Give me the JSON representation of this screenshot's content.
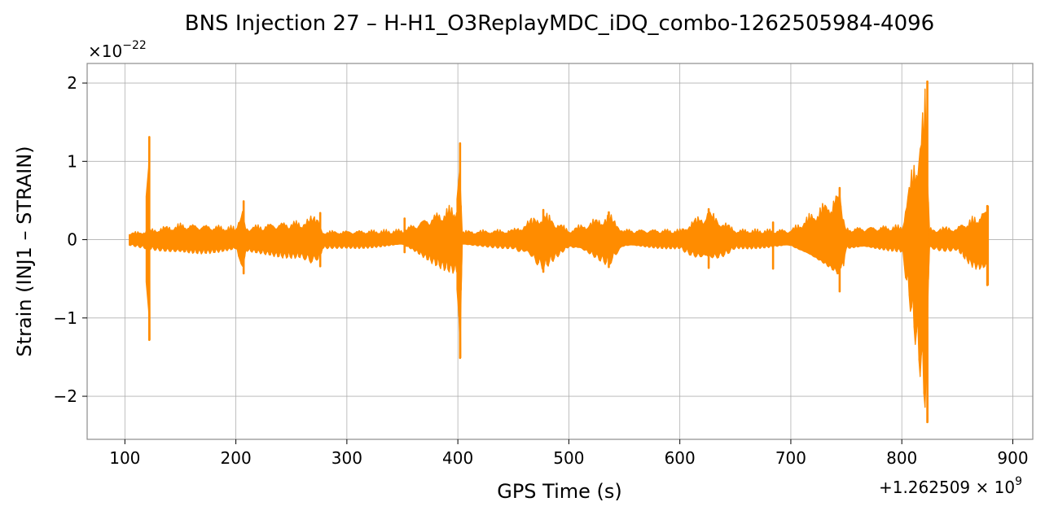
{
  "chart_data": {
    "type": "line",
    "title": "BNS Injection 27 – H-H1_O3ReplayMDC_iDQ_combo-1262505984-4096",
    "xlabel": "GPS Time (s)",
    "ylabel": "Strain (INJ1 – STRAIN)",
    "x_offset_label": "+1.262509 × 10",
    "x_offset_exp": "9",
    "y_scale_label": "×10",
    "y_scale_exp": "−22",
    "xlim": [
      66,
      918
    ],
    "ylim": [
      -2.55,
      2.25
    ],
    "xticks": [
      100,
      200,
      300,
      400,
      500,
      600,
      700,
      800,
      900
    ],
    "xtick_labels": [
      "100",
      "200",
      "300",
      "400",
      "500",
      "600",
      "700",
      "800",
      "900"
    ],
    "yticks": [
      2,
      1,
      0,
      -1,
      -2
    ],
    "ytick_labels": [
      "2",
      "1",
      "0",
      "−1",
      "−2"
    ],
    "grid": true,
    "line_color": "#ff8c00",
    "series": [
      {
        "x": [
          104,
          150,
          200,
          206,
          209,
          230,
          260,
          274,
          278,
          300,
          350,
          400,
          402,
          404,
          450,
          477,
          500,
          536,
          550,
          600,
          625,
          650,
          700,
          744,
          750,
          800,
          822,
          825,
          850,
          878
        ],
        "y_upper": [
          0.09,
          0.22,
          0.18,
          0.48,
          0.18,
          0.22,
          0.26,
          0.34,
          0.12,
          0.12,
          0.14,
          0.5,
          1.23,
          0.12,
          0.14,
          0.38,
          0.14,
          0.35,
          0.14,
          0.14,
          0.4,
          0.14,
          0.14,
          0.66,
          0.16,
          0.2,
          2.02,
          0.16,
          0.18,
          0.43
        ],
        "y_lower": [
          -0.08,
          -0.2,
          -0.16,
          -0.42,
          -0.18,
          -0.22,
          -0.26,
          -0.34,
          -0.12,
          -0.12,
          -0.1,
          -0.5,
          -1.51,
          -0.1,
          -0.12,
          -0.4,
          -0.12,
          -0.34,
          -0.12,
          -0.12,
          -0.36,
          -0.12,
          -0.12,
          -0.66,
          -0.14,
          -0.16,
          -2.33,
          -0.14,
          -0.16,
          -0.58
        ]
      }
    ],
    "spikes": [
      {
        "x": 122,
        "max": 1.31,
        "min": -1.28
      },
      {
        "x": 207,
        "max": 0.49,
        "min": -0.43
      },
      {
        "x": 276,
        "max": 0.34,
        "min": -0.34
      },
      {
        "x": 352,
        "max": 0.27,
        "min": -0.16
      },
      {
        "x": 402,
        "max": 1.23,
        "min": -1.51
      },
      {
        "x": 477,
        "max": 0.38,
        "min": -0.41
      },
      {
        "x": 536,
        "max": 0.35,
        "min": -0.35
      },
      {
        "x": 626,
        "max": 0.39,
        "min": -0.36
      },
      {
        "x": 684,
        "max": 0.22,
        "min": -0.37
      },
      {
        "x": 744,
        "max": 0.66,
        "min": -0.66
      },
      {
        "x": 823,
        "max": 2.02,
        "min": -2.33
      },
      {
        "x": 877,
        "max": 0.43,
        "min": -0.58
      }
    ]
  }
}
